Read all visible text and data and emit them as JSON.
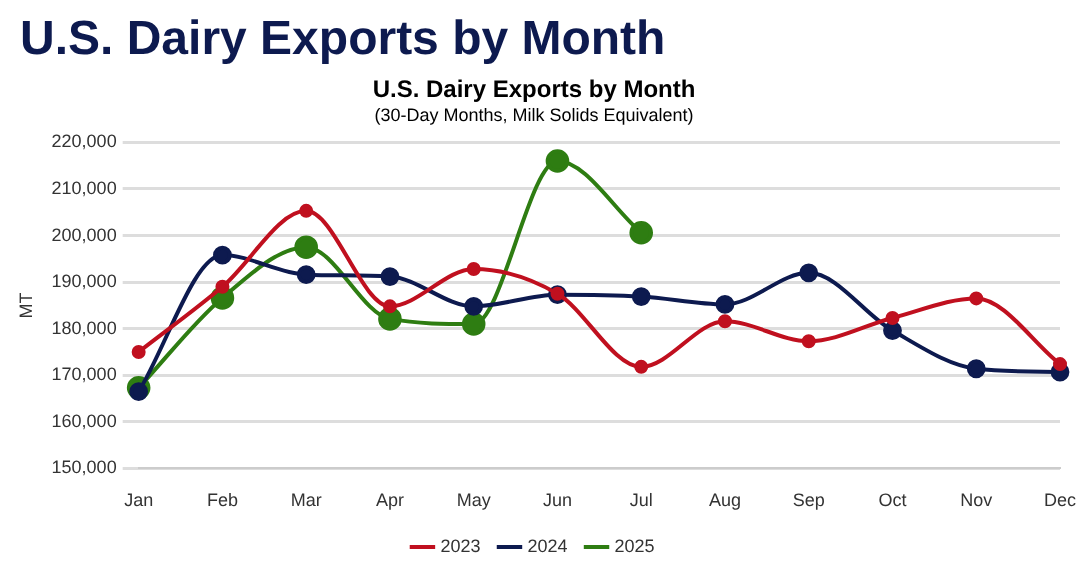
{
  "chart_data": {
    "type": "line",
    "title": "U.S. Dairy Exports by Month",
    "subtitle": "(30-Day Months, Milk Solids Equivalent)",
    "annotations": [
      "U.S. Dairy Exports by Month"
    ],
    "ylabel": "MT",
    "categories": [
      "Jan",
      "Feb",
      "Mar",
      "Apr",
      "May",
      "Jun",
      "Jul",
      "Aug",
      "Sep",
      "Oct",
      "Nov",
      "Dec"
    ],
    "series": [
      {
        "name": "2023",
        "color": "#c0101f",
        "values": [
          175000,
          189000,
          205300,
          184800,
          192800,
          187500,
          171800,
          181600,
          177300,
          182300,
          186500,
          172400
        ]
      },
      {
        "name": "2024",
        "color": "#0d1a4f",
        "values": [
          166500,
          195800,
          191600,
          191200,
          184800,
          187300,
          186900,
          185200,
          192000,
          179600,
          171400,
          170700
        ]
      },
      {
        "name": "2025",
        "color": "#2e7d12",
        "values": [
          167300,
          186600,
          197500,
          182100,
          181000,
          216000,
          200600,
          null,
          null,
          null,
          null,
          null
        ]
      }
    ],
    "ylim": [
      150000,
      220000
    ],
    "yticks": [
      {
        "value": 150000,
        "label": "150,000"
      },
      {
        "value": 160000,
        "label": "160,000"
      },
      {
        "value": 170000,
        "label": "170,000"
      },
      {
        "value": 180000,
        "label": "180,000"
      },
      {
        "value": 190000,
        "label": "190,000"
      },
      {
        "value": 200000,
        "label": "200,000"
      },
      {
        "value": 210000,
        "label": "210,000"
      },
      {
        "value": 220000,
        "label": "220,000"
      }
    ],
    "grid": "y",
    "legend": "bottom",
    "marker": "circle",
    "line_style": "solid"
  }
}
